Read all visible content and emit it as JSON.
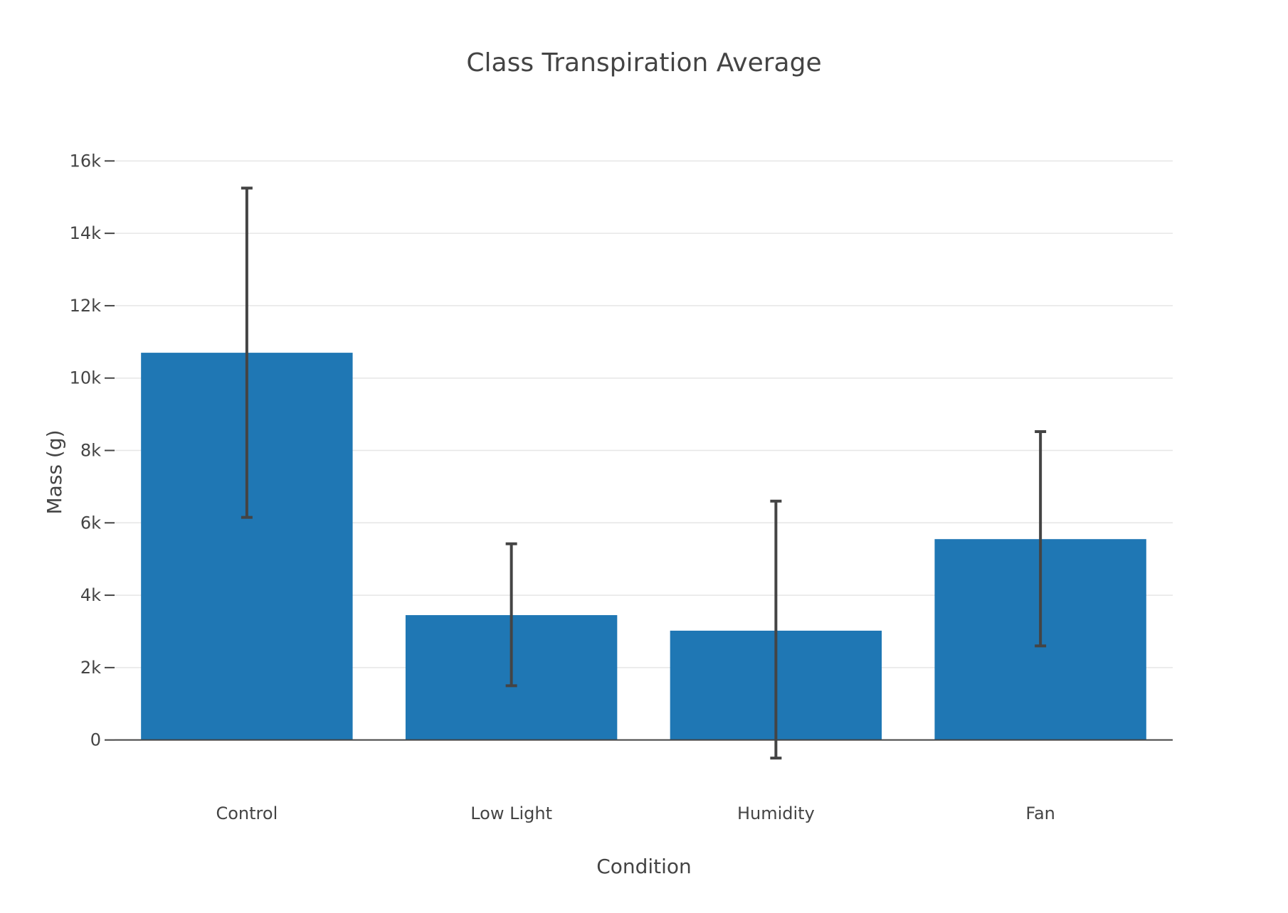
{
  "chart_data": {
    "type": "bar",
    "title": "Class Transpiration Average",
    "xlabel": "Condition",
    "ylabel": "Mass (g)",
    "categories": [
      "Control",
      "Low Light",
      "Humidity",
      "Fan"
    ],
    "values": [
      10700,
      3450,
      3020,
      5550
    ],
    "error_upper": [
      15250,
      5420,
      6600,
      8520
    ],
    "error_lower": [
      6150,
      1500,
      -500,
      2600
    ],
    "ylim": [
      -1500,
      17500
    ],
    "yticks": [
      0,
      2000,
      4000,
      6000,
      8000,
      10000,
      12000,
      14000,
      16000
    ],
    "ytick_labels": [
      "0",
      "2k",
      "4k",
      "6k",
      "8k",
      "10k",
      "12k",
      "14k",
      "16k"
    ],
    "bar_color": "#1f77b4",
    "grid": true,
    "legend": "none"
  }
}
